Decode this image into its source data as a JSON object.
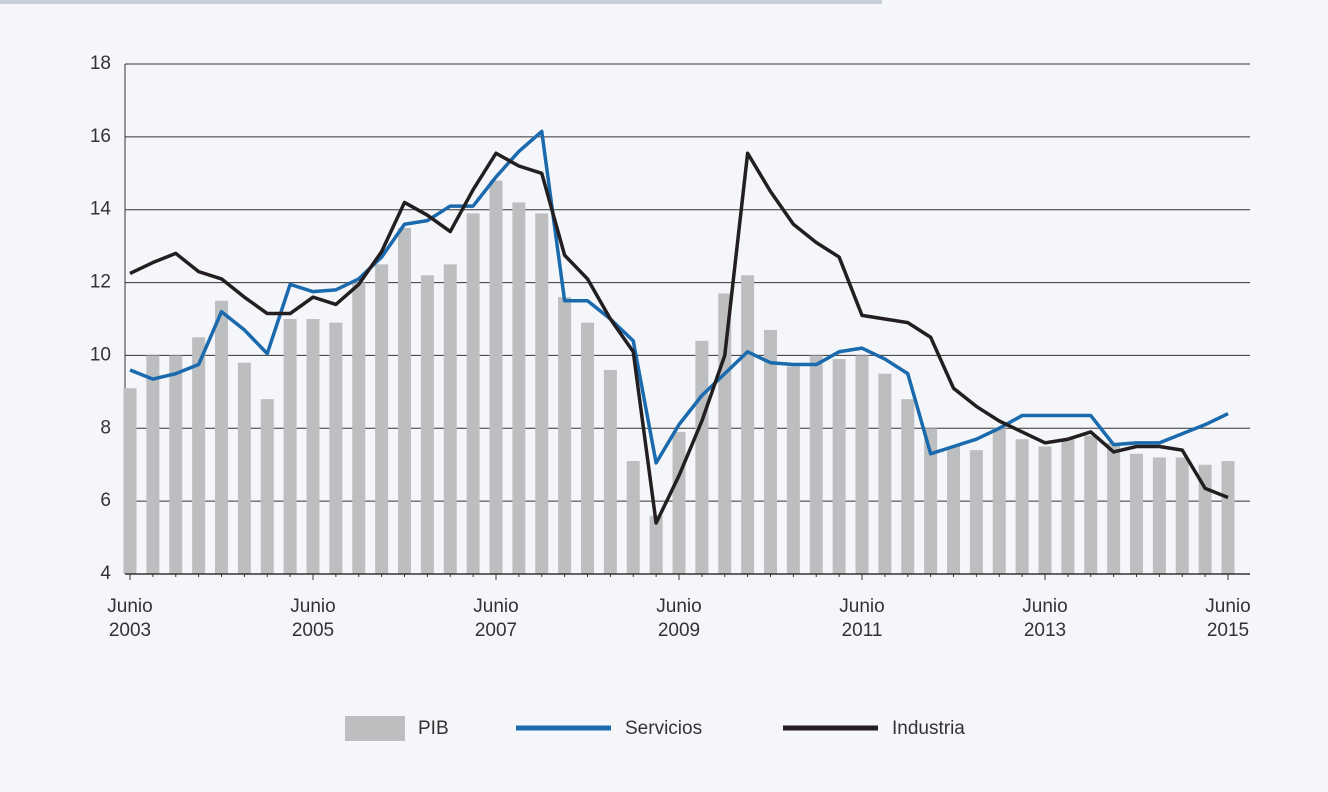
{
  "chart_data": {
    "type": "bar-line",
    "categories": [
      "Junio\n2003",
      null,
      null,
      null,
      null,
      null,
      null,
      null,
      "Junio\n2005",
      null,
      null,
      null,
      null,
      null,
      null,
      null,
      "Junio\n2007",
      null,
      null,
      null,
      null,
      null,
      null,
      null,
      "Junio\n2009",
      null,
      null,
      null,
      null,
      null,
      null,
      null,
      "Junio\n2011",
      null,
      null,
      null,
      null,
      null,
      null,
      null,
      "Junio\n2013",
      null,
      null,
      null,
      null,
      null,
      null,
      null,
      "Junio\n2015"
    ],
    "series": [
      {
        "name": "PIB",
        "kind": "bar",
        "color": "#bcbec0",
        "values": [
          9.1,
          10.0,
          10.0,
          10.5,
          11.5,
          9.8,
          8.8,
          11.0,
          11.0,
          10.9,
          12.0,
          12.5,
          13.5,
          12.2,
          12.5,
          13.9,
          14.8,
          14.2,
          13.9,
          11.6,
          10.9,
          9.6,
          7.1,
          5.6,
          7.9,
          10.4,
          11.7,
          12.2,
          10.7,
          9.7,
          10.0,
          9.9,
          10.0,
          9.5,
          8.8,
          8.0,
          7.5,
          7.4,
          8.0,
          7.7,
          7.5,
          7.7,
          7.8,
          7.6,
          7.3,
          7.2,
          7.2,
          7.0,
          7.1
        ]
      },
      {
        "name": "Servicios",
        "kind": "line",
        "color": "#1a6aad",
        "values": [
          9.6,
          9.35,
          9.5,
          9.75,
          11.2,
          10.7,
          10.05,
          11.95,
          11.75,
          11.8,
          12.1,
          12.7,
          13.6,
          13.7,
          14.1,
          14.1,
          14.9,
          15.6,
          16.15,
          11.5,
          11.5,
          11.0,
          10.4,
          7.05,
          8.1,
          8.9,
          9.5,
          10.1,
          9.8,
          9.75,
          9.75,
          10.1,
          10.2,
          9.9,
          9.5,
          7.3,
          7.5,
          7.7,
          8.0,
          8.35,
          8.35,
          8.35,
          8.35,
          7.55,
          7.6,
          7.6,
          7.85,
          8.1,
          8.4
        ]
      },
      {
        "name": "Industria",
        "kind": "line",
        "color": "#231f20",
        "values": [
          12.25,
          12.55,
          12.8,
          12.3,
          12.1,
          11.6,
          11.15,
          11.15,
          11.6,
          11.4,
          11.95,
          12.85,
          14.2,
          13.85,
          13.4,
          14.55,
          15.55,
          15.2,
          15.0,
          12.75,
          12.1,
          11.0,
          10.1,
          5.4,
          6.7,
          8.2,
          10.0,
          15.55,
          14.5,
          13.6,
          13.1,
          12.7,
          11.1,
          11.0,
          10.9,
          10.5,
          9.1,
          8.6,
          8.2,
          7.9,
          7.6,
          7.7,
          7.9,
          7.35,
          7.5,
          7.5,
          7.4,
          6.35,
          6.1
        ]
      }
    ],
    "ylim": [
      4,
      18
    ],
    "yticks": [
      4,
      6,
      8,
      10,
      12,
      14,
      16,
      18
    ],
    "grid": true
  }
}
